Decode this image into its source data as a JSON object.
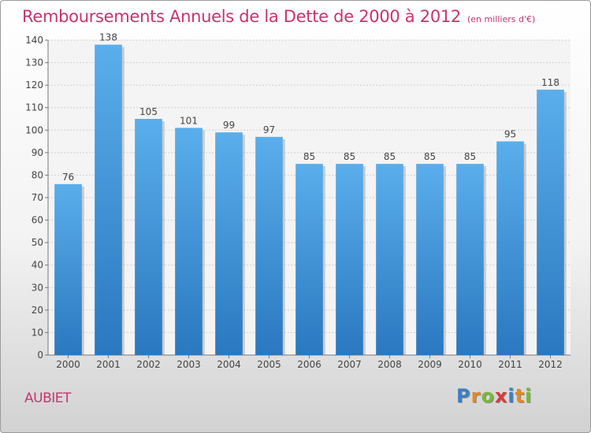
{
  "header": {
    "title": "Remboursements Annuels de la Dette de 2000 à 2012",
    "unit": "(en milliers d'€)"
  },
  "footer": {
    "town": "AUBIET",
    "logo": "Proxiti"
  },
  "colors": {
    "bar": "#3d8fd8",
    "bar_light": "#5aaeeb",
    "title": "#c8336e"
  },
  "chart_data": {
    "type": "bar",
    "title": "Remboursements Annuels de la Dette de 2000 à 2012",
    "categories": [
      "2000",
      "2001",
      "2002",
      "2003",
      "2004",
      "2005",
      "2006",
      "2007",
      "2008",
      "2009",
      "2010",
      "2011",
      "2012"
    ],
    "values": [
      76,
      138,
      105,
      101,
      99,
      97,
      85,
      85,
      85,
      85,
      85,
      95,
      118
    ],
    "ylim": [
      0,
      140
    ],
    "yticks": [
      0,
      10,
      20,
      30,
      40,
      50,
      60,
      70,
      80,
      90,
      100,
      110,
      120,
      130,
      140
    ],
    "grid": true,
    "xlabel": "",
    "ylabel": ""
  }
}
